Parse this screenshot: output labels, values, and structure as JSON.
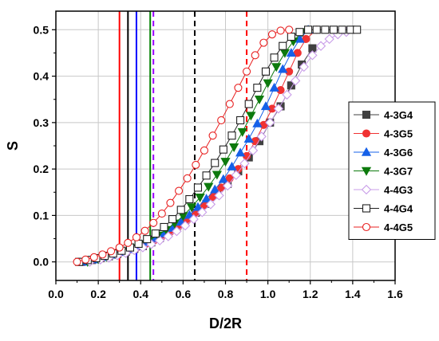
{
  "chart_data": {
    "type": "scatter",
    "xlabel": "D/2R",
    "ylabel": "S",
    "xlim": [
      0.0,
      1.6
    ],
    "ylim": [
      -0.04,
      0.54
    ],
    "xticks": [
      "0.0",
      "0.2",
      "0.4",
      "0.6",
      "0.8",
      "1.0",
      "1.2",
      "1.4",
      "1.6"
    ],
    "yticks": [
      "0.0",
      "0.1",
      "0.2",
      "0.3",
      "0.4",
      "0.5"
    ],
    "grid": true,
    "legend_position": "right",
    "vertical_lines": [
      {
        "x": 0.3,
        "color": "#ff0000",
        "style": "solid"
      },
      {
        "x": 0.34,
        "color": "#000000",
        "style": "solid"
      },
      {
        "x": 0.38,
        "color": "#0000ff",
        "style": "solid"
      },
      {
        "x": 0.445,
        "color": "#008000",
        "style": "solid"
      },
      {
        "x": 0.46,
        "color": "#9900ff",
        "style": "dashed"
      },
      {
        "x": 0.655,
        "color": "#000000",
        "style": "dashed"
      },
      {
        "x": 0.9,
        "color": "#ff0000",
        "style": "dashed"
      }
    ],
    "series": [
      {
        "name": "4-3G4",
        "marker": "square-filled",
        "color": "#404040",
        "x": [
          0.12,
          0.17,
          0.21,
          0.25,
          0.29,
          0.33,
          0.37,
          0.41,
          0.45,
          0.49,
          0.53,
          0.57,
          0.61,
          0.66,
          0.71,
          0.76,
          0.81,
          0.86,
          0.91,
          0.96,
          1.01,
          1.06,
          1.11,
          1.16,
          1.21
        ],
        "y": [
          0.0,
          0.004,
          0.008,
          0.012,
          0.017,
          0.022,
          0.028,
          0.034,
          0.042,
          0.051,
          0.062,
          0.075,
          0.09,
          0.106,
          0.125,
          0.145,
          0.168,
          0.195,
          0.225,
          0.26,
          0.3,
          0.335,
          0.38,
          0.425,
          0.46
        ]
      },
      {
        "name": "4-3G5",
        "marker": "circle-filled",
        "color": "#f03232",
        "x": [
          0.13,
          0.18,
          0.22,
          0.26,
          0.3,
          0.34,
          0.38,
          0.42,
          0.46,
          0.5,
          0.54,
          0.58,
          0.62,
          0.66,
          0.7,
          0.74,
          0.78,
          0.82,
          0.86,
          0.9,
          0.94,
          0.98,
          1.02,
          1.06,
          1.1,
          1.14,
          1.18,
          1.23
        ],
        "y": [
          0.0,
          0.005,
          0.009,
          0.014,
          0.019,
          0.024,
          0.03,
          0.037,
          0.045,
          0.055,
          0.065,
          0.077,
          0.09,
          0.105,
          0.122,
          0.14,
          0.16,
          0.18,
          0.2,
          0.228,
          0.26,
          0.295,
          0.33,
          0.37,
          0.41,
          0.45,
          0.48,
          0.5
        ]
      },
      {
        "name": "4-3G6",
        "marker": "triangle-up-filled",
        "color": "#1560e8",
        "x": [
          0.14,
          0.19,
          0.23,
          0.27,
          0.31,
          0.35,
          0.39,
          0.43,
          0.47,
          0.51,
          0.55,
          0.59,
          0.63,
          0.67,
          0.71,
          0.75,
          0.79,
          0.83,
          0.87,
          0.91,
          0.95,
          0.99,
          1.03,
          1.07,
          1.11,
          1.15,
          1.19
        ],
        "y": [
          0.0,
          0.005,
          0.01,
          0.015,
          0.021,
          0.027,
          0.034,
          0.042,
          0.051,
          0.061,
          0.073,
          0.086,
          0.101,
          0.118,
          0.136,
          0.156,
          0.178,
          0.205,
          0.235,
          0.265,
          0.298,
          0.335,
          0.375,
          0.415,
          0.45,
          0.48,
          0.5
        ]
      },
      {
        "name": "4-3G7",
        "marker": "triangle-down-filled",
        "color": "#0d7a0d",
        "x": [
          0.15,
          0.2,
          0.24,
          0.28,
          0.32,
          0.36,
          0.4,
          0.44,
          0.48,
          0.52,
          0.56,
          0.6,
          0.64,
          0.68,
          0.72,
          0.76,
          0.8,
          0.84,
          0.88,
          0.92,
          0.96,
          1.0,
          1.04,
          1.08,
          1.12,
          1.16
        ],
        "y": [
          0.0,
          0.006,
          0.011,
          0.017,
          0.023,
          0.03,
          0.038,
          0.047,
          0.057,
          0.069,
          0.083,
          0.099,
          0.118,
          0.139,
          0.162,
          0.188,
          0.216,
          0.247,
          0.28,
          0.315,
          0.35,
          0.385,
          0.42,
          0.45,
          0.475,
          0.495
        ]
      },
      {
        "name": "4-4G3",
        "marker": "diamond-open",
        "color": "#c89ce8",
        "x": [
          0.16,
          0.21,
          0.25,
          0.29,
          0.33,
          0.37,
          0.41,
          0.45,
          0.49,
          0.53,
          0.57,
          0.61,
          0.65,
          0.69,
          0.73,
          0.77,
          0.81,
          0.85,
          0.89,
          0.93,
          0.97,
          1.01,
          1.05,
          1.09,
          1.13,
          1.17,
          1.21,
          1.25,
          1.29,
          1.33,
          1.37
        ],
        "y": [
          0.0,
          0.005,
          0.009,
          0.014,
          0.019,
          0.025,
          0.031,
          0.038,
          0.046,
          0.055,
          0.066,
          0.078,
          0.092,
          0.107,
          0.124,
          0.143,
          0.164,
          0.187,
          0.212,
          0.24,
          0.27,
          0.3,
          0.33,
          0.36,
          0.39,
          0.42,
          0.445,
          0.465,
          0.48,
          0.49,
          0.495
        ]
      },
      {
        "name": "4-4G4",
        "marker": "square-open",
        "color": "#202020",
        "x": [
          0.11,
          0.15,
          0.19,
          0.23,
          0.27,
          0.31,
          0.35,
          0.39,
          0.43,
          0.47,
          0.51,
          0.55,
          0.59,
          0.63,
          0.67,
          0.71,
          0.75,
          0.79,
          0.83,
          0.87,
          0.91,
          0.95,
          0.99,
          1.03,
          1.07,
          1.11,
          1.15,
          1.19,
          1.23,
          1.27,
          1.31,
          1.35,
          1.39,
          1.42
        ],
        "y": [
          0.0,
          0.004,
          0.008,
          0.013,
          0.018,
          0.024,
          0.031,
          0.039,
          0.049,
          0.061,
          0.075,
          0.092,
          0.112,
          0.135,
          0.16,
          0.186,
          0.213,
          0.242,
          0.272,
          0.305,
          0.34,
          0.375,
          0.41,
          0.44,
          0.465,
          0.485,
          0.495,
          0.5,
          0.5,
          0.5,
          0.5,
          0.5,
          0.5,
          0.5
        ]
      },
      {
        "name": "4-4G5",
        "marker": "circle-open",
        "color": "#e82020",
        "x": [
          0.1,
          0.14,
          0.18,
          0.22,
          0.26,
          0.3,
          0.34,
          0.38,
          0.42,
          0.46,
          0.5,
          0.54,
          0.58,
          0.62,
          0.66,
          0.7,
          0.74,
          0.78,
          0.82,
          0.86,
          0.9,
          0.94,
          0.98,
          1.02,
          1.06,
          1.1
        ],
        "y": [
          0.0,
          0.005,
          0.01,
          0.016,
          0.023,
          0.031,
          0.041,
          0.053,
          0.067,
          0.084,
          0.104,
          0.127,
          0.153,
          0.18,
          0.209,
          0.24,
          0.272,
          0.305,
          0.34,
          0.375,
          0.41,
          0.445,
          0.472,
          0.49,
          0.498,
          0.5
        ]
      }
    ]
  }
}
